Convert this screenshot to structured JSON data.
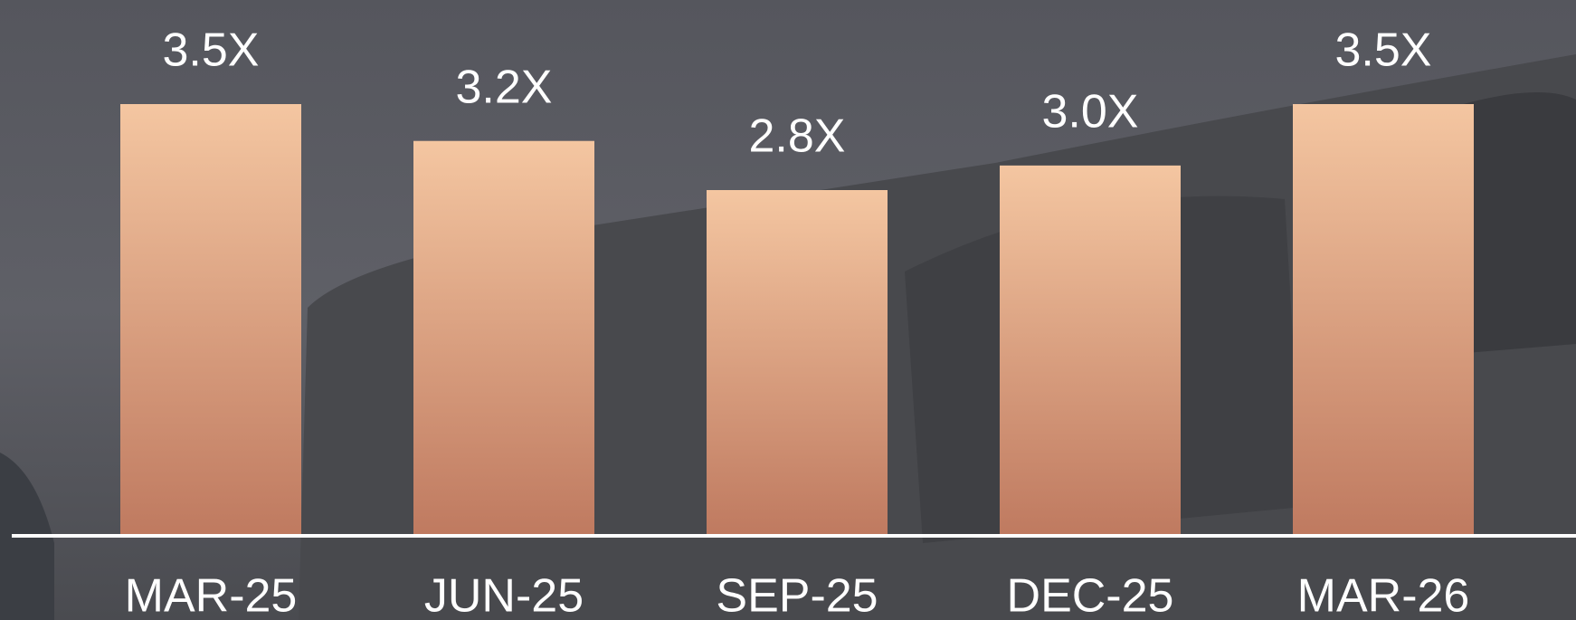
{
  "chart_data": {
    "type": "bar",
    "categories": [
      "MAR-25",
      "JUN-25",
      "SEP-25",
      "DEC-25",
      "MAR-26"
    ],
    "values": [
      3.5,
      3.2,
      2.8,
      3.0,
      3.5
    ],
    "value_labels": [
      "3.5X",
      "3.2X",
      "2.8X",
      "3.0X",
      "3.5X"
    ]
  }
}
